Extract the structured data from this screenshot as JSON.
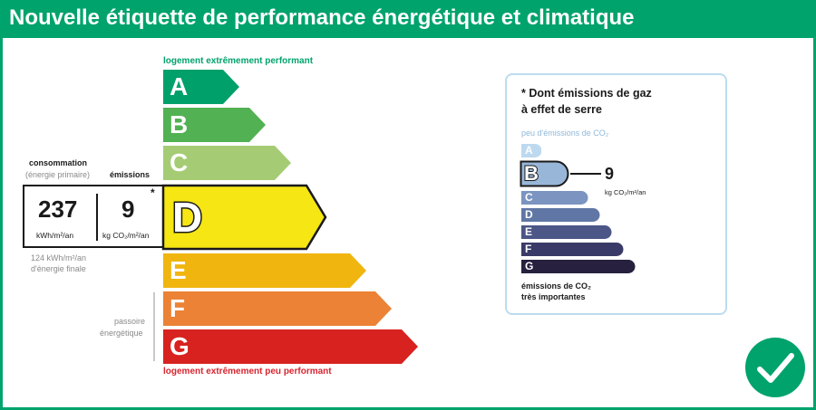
{
  "title": "Nouvelle étiquette de performance énergétique et climatique",
  "energy_scale": {
    "top_caption": "logement extrêmement performant",
    "bottom_caption": "logement extrêmement peu performant",
    "current_grade": "D",
    "grades": [
      {
        "letter": "A",
        "color": "#00a06b"
      },
      {
        "letter": "B",
        "color": "#52b153"
      },
      {
        "letter": "C",
        "color": "#a5cc74"
      },
      {
        "letter": "D",
        "color": "#f5e614"
      },
      {
        "letter": "E",
        "color": "#f0b50f"
      },
      {
        "letter": "F",
        "color": "#eb8235"
      },
      {
        "letter": "G",
        "color": "#d7221f"
      }
    ]
  },
  "consumption": {
    "label": "consommation",
    "sublabel": "(énergie primaire)",
    "value": "237",
    "unit": "kWh/m²/an",
    "final_energy_line1": "124 kWh/m²/an",
    "final_energy_line2": "d'énergie finale"
  },
  "emissions": {
    "label": "émissions",
    "value": "9",
    "unit": "kg CO₂/m²/an",
    "asterisk": "*"
  },
  "passoire": {
    "line1": "passoire",
    "line2": "énergétique"
  },
  "co2_panel": {
    "title_line1": "* Dont émissions de gaz",
    "title_line2": "à effet de serre",
    "top_caption": "peu d'émissions de CO₂",
    "bottom_caption_line1": "émissions de CO₂",
    "bottom_caption_line2": "très importantes",
    "current_grade": "B",
    "value": "9",
    "unit": "kg CO₂/m²/an",
    "grades": [
      {
        "letter": "A",
        "color": "#bcd9f0"
      },
      {
        "letter": "B",
        "color": "#98b6d8"
      },
      {
        "letter": "C",
        "color": "#7b94c0"
      },
      {
        "letter": "D",
        "color": "#6077a6"
      },
      {
        "letter": "E",
        "color": "#4c5687"
      },
      {
        "letter": "F",
        "color": "#3a3a68"
      },
      {
        "letter": "G",
        "color": "#27213f"
      }
    ]
  },
  "badge": {
    "icon": "checkmark-icon",
    "color": "#00a36c"
  }
}
